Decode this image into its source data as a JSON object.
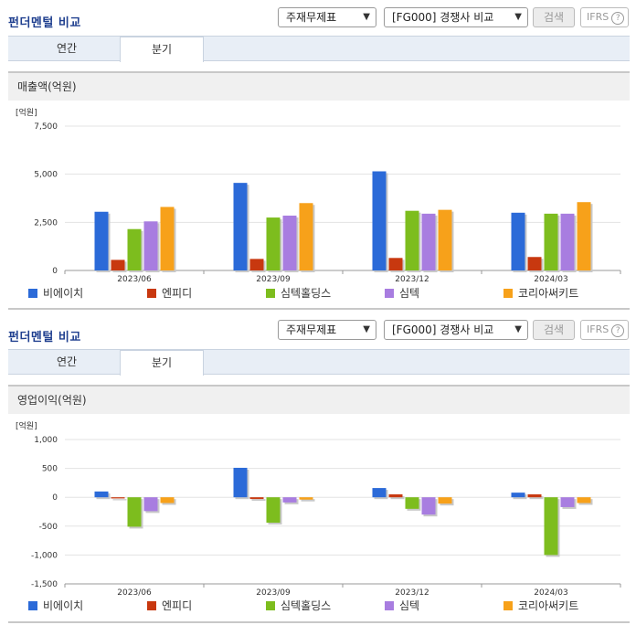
{
  "panels": [
    {
      "title": "펀더멘털 비교",
      "select1": "주재무제표",
      "select2": "[FG000] 경쟁사 비교",
      "search_btn": "검색",
      "ifrs": "IFRS",
      "ifrs_help": "?",
      "tabs": [
        "연간",
        "분기"
      ],
      "active_tab": 1,
      "chart_title": "매출액(억원)"
    },
    {
      "title": "펀더멘털 비교",
      "select1": "주재무제표",
      "select2": "[FG000] 경쟁사 비교",
      "search_btn": "검색",
      "ifrs": "IFRS",
      "ifrs_help": "?",
      "tabs": [
        "연간",
        "분기"
      ],
      "active_tab": 1,
      "chart_title": "영업이익(억원)"
    }
  ],
  "colors": [
    "#2b6ad8",
    "#c8380f",
    "#7dbd1e",
    "#a87de0",
    "#f7a11a"
  ],
  "chart_data": [
    {
      "type": "bar",
      "title": "매출액(억원)",
      "unit_label": "[억원]",
      "categories": [
        "2023/06",
        "2023/09",
        "2023/12",
        "2024/03"
      ],
      "ylim": [
        0,
        7500
      ],
      "yticks": [
        0,
        2500,
        5000,
        7500
      ],
      "ytick_labels": [
        "0",
        "2,500",
        "5,000",
        "7,500"
      ],
      "grid": true,
      "legend": "bottom",
      "series": [
        {
          "name": "비에이치",
          "values": [
            3050,
            4550,
            5150,
            3000
          ]
        },
        {
          "name": "엔피디",
          "values": [
            550,
            600,
            650,
            700
          ]
        },
        {
          "name": "심텍홀딩스",
          "values": [
            2150,
            2750,
            3100,
            2950
          ]
        },
        {
          "name": "심텍",
          "values": [
            2550,
            2850,
            2950,
            2950
          ]
        },
        {
          "name": "코리아써키트",
          "values": [
            3300,
            3500,
            3150,
            3550
          ]
        }
      ]
    },
    {
      "type": "bar",
      "title": "영업이익(억원)",
      "unit_label": "[억원]",
      "categories": [
        "2023/06",
        "2023/09",
        "2023/12",
        "2024/03"
      ],
      "ylim": [
        -1500,
        1000
      ],
      "yticks": [
        -1500,
        -1000,
        -500,
        0,
        500,
        1000
      ],
      "ytick_labels": [
        "-1,500",
        "-1,000",
        "-500",
        "0",
        "500",
        "1,000"
      ],
      "grid": true,
      "legend": "bottom",
      "series": [
        {
          "name": "비에이치",
          "values": [
            100,
            510,
            160,
            80
          ]
        },
        {
          "name": "엔피디",
          "values": [
            -20,
            -30,
            50,
            50
          ]
        },
        {
          "name": "심텍홀딩스",
          "values": [
            -510,
            -440,
            -200,
            -1000
          ]
        },
        {
          "name": "심텍",
          "values": [
            -240,
            -90,
            -300,
            -170
          ]
        },
        {
          "name": "코리아써키트",
          "values": [
            -100,
            -40,
            -110,
            -100
          ]
        }
      ]
    }
  ]
}
